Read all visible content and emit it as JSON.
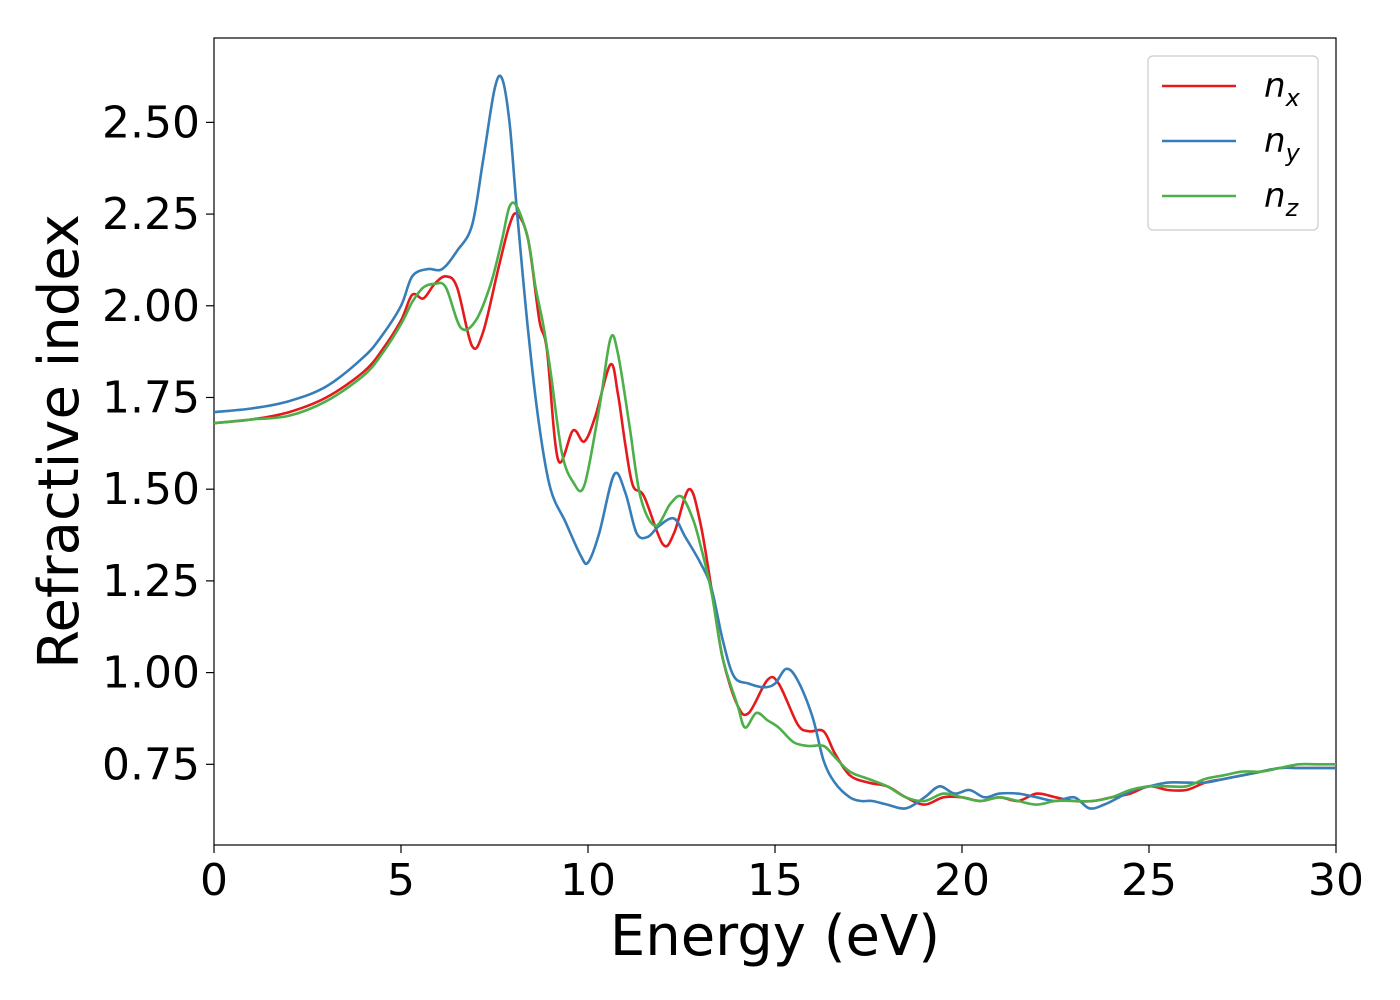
{
  "chart_data": {
    "type": "line",
    "title": "",
    "xlabel": "Energy (eV)",
    "ylabel": "Refractive index",
    "xlim": [
      0,
      30
    ],
    "ylim": [
      0.53,
      2.73
    ],
    "xticks": [
      0,
      5,
      10,
      15,
      20,
      25,
      30
    ],
    "xtick_labels": [
      "0",
      "5",
      "10",
      "15",
      "20",
      "25",
      "30"
    ],
    "yticks": [
      0.75,
      1.0,
      1.25,
      1.5,
      1.75,
      2.0,
      2.25,
      2.5
    ],
    "ytick_labels": [
      "0.75",
      "1.00",
      "1.25",
      "1.50",
      "1.75",
      "2.00",
      "2.25",
      "2.50"
    ],
    "grid": false,
    "legend_position": "top-right",
    "series": [
      {
        "name": "n",
        "sub": "x",
        "color": "#e41a1c",
        "x": [
          0,
          1,
          2,
          3,
          4,
          4.5,
          5,
          5.3,
          5.6,
          5.9,
          6.2,
          6.5,
          6.9,
          7.2,
          7.6,
          7.9,
          8.1,
          8.4,
          8.7,
          8.9,
          9.2,
          9.6,
          9.9,
          10.2,
          10.6,
          10.8,
          11.0,
          11.2,
          11.5,
          12.0,
          12.3,
          12.7,
          13.0,
          13.3,
          13.6,
          14.0,
          14.3,
          14.8,
          15.1,
          15.6,
          15.9,
          16.3,
          16.6,
          17.0,
          17.5,
          18.0,
          18.5,
          19.0,
          19.5,
          20.0,
          20.5,
          21.0,
          21.5,
          22.0,
          22.5,
          23.0,
          23.5,
          24.0,
          24.5,
          25.0,
          25.5,
          26.0,
          26.5,
          27.0,
          27.5,
          28.0,
          28.5,
          29.0,
          29.5,
          30.0
        ],
        "y": [
          1.68,
          1.69,
          1.71,
          1.75,
          1.82,
          1.88,
          1.96,
          2.03,
          2.02,
          2.06,
          2.08,
          2.05,
          1.89,
          1.93,
          2.1,
          2.22,
          2.25,
          2.18,
          1.96,
          1.88,
          1.58,
          1.66,
          1.63,
          1.7,
          1.84,
          1.76,
          1.62,
          1.51,
          1.48,
          1.35,
          1.38,
          1.5,
          1.41,
          1.23,
          1.04,
          0.91,
          0.89,
          0.98,
          0.97,
          0.86,
          0.84,
          0.84,
          0.78,
          0.72,
          0.7,
          0.69,
          0.66,
          0.64,
          0.66,
          0.66,
          0.65,
          0.66,
          0.65,
          0.67,
          0.66,
          0.65,
          0.65,
          0.66,
          0.67,
          0.69,
          0.68,
          0.68,
          0.7,
          0.71,
          0.72,
          0.73,
          0.74,
          0.74,
          0.74,
          0.74
        ]
      },
      {
        "name": "n",
        "sub": "y",
        "color": "#377eb8",
        "x": [
          0,
          1,
          2,
          3,
          4,
          4.5,
          5,
          5.3,
          5.7,
          6.1,
          6.5,
          6.9,
          7.2,
          7.5,
          7.7,
          7.9,
          8.1,
          8.4,
          8.7,
          9.0,
          9.4,
          9.8,
          10.0,
          10.3,
          10.7,
          11.0,
          11.3,
          11.6,
          11.9,
          12.3,
          12.6,
          13.0,
          13.3,
          13.6,
          13.9,
          14.3,
          14.7,
          15.0,
          15.3,
          15.6,
          16.0,
          16.3,
          16.6,
          17.0,
          17.3,
          17.6,
          18.0,
          18.5,
          19.0,
          19.4,
          19.8,
          20.2,
          20.6,
          21.0,
          21.5,
          22.0,
          22.5,
          23.0,
          23.4,
          23.8,
          24.2,
          24.6,
          25.0,
          25.5,
          26.0,
          26.5,
          27.0,
          27.5,
          28.0,
          28.5,
          29.0,
          29.5,
          30.0
        ],
        "y": [
          1.71,
          1.72,
          1.74,
          1.78,
          1.86,
          1.92,
          2.0,
          2.08,
          2.1,
          2.1,
          2.15,
          2.22,
          2.4,
          2.59,
          2.62,
          2.5,
          2.26,
          1.93,
          1.67,
          1.5,
          1.41,
          1.32,
          1.3,
          1.38,
          1.54,
          1.49,
          1.38,
          1.37,
          1.4,
          1.42,
          1.37,
          1.3,
          1.23,
          1.09,
          0.99,
          0.97,
          0.96,
          0.97,
          1.01,
          0.98,
          0.88,
          0.76,
          0.7,
          0.66,
          0.65,
          0.65,
          0.64,
          0.63,
          0.66,
          0.69,
          0.67,
          0.68,
          0.66,
          0.67,
          0.67,
          0.66,
          0.65,
          0.66,
          0.63,
          0.64,
          0.66,
          0.68,
          0.69,
          0.7,
          0.7,
          0.7,
          0.71,
          0.72,
          0.73,
          0.74,
          0.74,
          0.74,
          0.74
        ]
      },
      {
        "name": "n",
        "sub": "z",
        "color": "#4daf4a",
        "x": [
          0,
          1,
          2,
          3,
          4,
          4.5,
          5,
          5.3,
          5.6,
          5.9,
          6.2,
          6.6,
          7.0,
          7.4,
          7.7,
          7.9,
          8.1,
          8.4,
          8.6,
          8.8,
          9.0,
          9.3,
          9.6,
          9.9,
          10.3,
          10.6,
          10.8,
          11.1,
          11.4,
          11.8,
          12.2,
          12.5,
          12.8,
          13.0,
          13.3,
          13.6,
          14.0,
          14.2,
          14.5,
          14.8,
          15.1,
          15.5,
          15.9,
          16.3,
          16.6,
          17.0,
          17.5,
          18.0,
          18.5,
          19.0,
          19.5,
          20.0,
          20.5,
          21.0,
          21.5,
          22.0,
          22.5,
          23.0,
          23.5,
          24.0,
          24.5,
          25.0,
          25.5,
          26.0,
          26.5,
          27.0,
          27.5,
          28.0,
          28.5,
          29.0,
          29.5,
          30.0
        ],
        "y": [
          1.68,
          1.69,
          1.7,
          1.74,
          1.81,
          1.87,
          1.95,
          2.01,
          2.05,
          2.06,
          2.05,
          1.94,
          1.96,
          2.06,
          2.18,
          2.27,
          2.27,
          2.18,
          2.05,
          1.95,
          1.82,
          1.6,
          1.52,
          1.51,
          1.72,
          1.91,
          1.87,
          1.68,
          1.48,
          1.4,
          1.46,
          1.48,
          1.42,
          1.35,
          1.22,
          1.04,
          0.91,
          0.85,
          0.89,
          0.87,
          0.85,
          0.81,
          0.8,
          0.8,
          0.77,
          0.73,
          0.71,
          0.69,
          0.66,
          0.65,
          0.67,
          0.66,
          0.65,
          0.66,
          0.65,
          0.64,
          0.65,
          0.65,
          0.65,
          0.66,
          0.68,
          0.69,
          0.69,
          0.69,
          0.71,
          0.72,
          0.73,
          0.73,
          0.74,
          0.75,
          0.75,
          0.75
        ]
      }
    ]
  }
}
